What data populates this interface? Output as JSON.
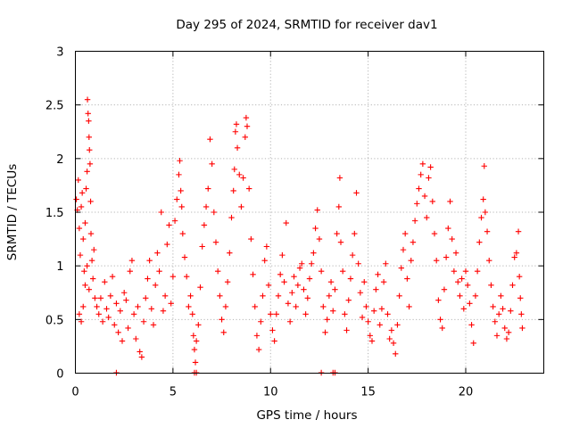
{
  "chart_data": {
    "type": "scatter",
    "title": "Day 295 of 2024, SRMTID for receiver dav1",
    "xlabel": "GPS time / hours",
    "ylabel": "SRMTID / TECUs",
    "xlim": [
      0,
      24
    ],
    "ylim": [
      0,
      3
    ],
    "xticks": [
      "0",
      "5",
      "10",
      "15",
      "20"
    ],
    "yticks": [
      "0",
      "0.5",
      "1",
      "1.5",
      "2",
      "2.5",
      "3"
    ],
    "grid": true,
    "marker": "+",
    "color": "#ff0000",
    "series": [
      {
        "name": "dav1",
        "points": [
          [
            0.05,
            1.62
          ],
          [
            0.1,
            1.52
          ],
          [
            0.15,
            1.8
          ],
          [
            0.2,
            1.35
          ],
          [
            0.25,
            1.1
          ],
          [
            0.3,
            1.55
          ],
          [
            0.35,
            1.68
          ],
          [
            0.4,
            1.25
          ],
          [
            0.45,
            0.95
          ],
          [
            0.5,
            1.4
          ],
          [
            0.55,
            1.72
          ],
          [
            0.6,
            1.88
          ],
          [
            0.62,
            2.55
          ],
          [
            0.65,
            2.42
          ],
          [
            0.68,
            2.35
          ],
          [
            0.7,
            2.2
          ],
          [
            0.72,
            2.08
          ],
          [
            0.75,
            1.95
          ],
          [
            0.78,
            1.6
          ],
          [
            0.8,
            1.3
          ],
          [
            0.85,
            1.05
          ],
          [
            0.9,
            0.88
          ],
          [
            0.95,
            1.15
          ],
          [
            1.0,
            0.7
          ],
          [
            0.2,
            0.55
          ],
          [
            0.3,
            0.48
          ],
          [
            0.4,
            0.62
          ],
          [
            0.5,
            0.82
          ],
          [
            0.6,
            1.0
          ],
          [
            0.7,
            0.78
          ],
          [
            1.1,
            0.62
          ],
          [
            1.2,
            0.55
          ],
          [
            1.3,
            0.7
          ],
          [
            1.4,
            0.48
          ],
          [
            1.5,
            0.85
          ],
          [
            1.6,
            0.6
          ],
          [
            1.7,
            0.52
          ],
          [
            1.8,
            0.72
          ],
          [
            1.9,
            0.9
          ],
          [
            2.0,
            0.45
          ],
          [
            2.1,
            0.65
          ],
          [
            2.2,
            0.38
          ],
          [
            2.3,
            0.58
          ],
          [
            2.4,
            0.3
          ],
          [
            2.5,
            0.75
          ],
          [
            2.6,
            0.68
          ],
          [
            2.7,
            0.42
          ],
          [
            2.8,
            0.95
          ],
          [
            2.9,
            1.05
          ],
          [
            3.0,
            0.55
          ],
          [
            3.1,
            0.32
          ],
          [
            3.2,
            0.62
          ],
          [
            3.3,
            0.2
          ],
          [
            3.4,
            0.15
          ],
          [
            3.5,
            0.48
          ],
          [
            3.6,
            0.7
          ],
          [
            3.7,
            0.88
          ],
          [
            3.8,
            1.05
          ],
          [
            3.9,
            0.6
          ],
          [
            4.0,
            0.45
          ],
          [
            4.1,
            0.82
          ],
          [
            4.2,
            1.12
          ],
          [
            4.3,
            0.95
          ],
          [
            4.4,
            1.5
          ],
          [
            4.5,
            0.58
          ],
          [
            4.6,
            0.72
          ],
          [
            4.7,
            1.2
          ],
          [
            4.8,
            1.38
          ],
          [
            4.9,
            0.65
          ],
          [
            5.0,
            0.9
          ],
          [
            5.1,
            1.42
          ],
          [
            5.2,
            1.62
          ],
          [
            5.3,
            1.85
          ],
          [
            5.35,
            1.98
          ],
          [
            5.4,
            1.7
          ],
          [
            5.45,
            1.55
          ],
          [
            5.5,
            1.3
          ],
          [
            5.6,
            1.08
          ],
          [
            5.7,
            0.9
          ],
          [
            5.8,
            0.62
          ],
          [
            5.9,
            0.72
          ],
          [
            6.0,
            0.55
          ],
          [
            6.05,
            0.35
          ],
          [
            6.1,
            0.22
          ],
          [
            6.15,
            0.1
          ],
          [
            6.2,
            0.3
          ],
          [
            6.3,
            0.45
          ],
          [
            6.4,
            0.8
          ],
          [
            6.5,
            1.18
          ],
          [
            6.6,
            1.38
          ],
          [
            6.7,
            1.55
          ],
          [
            6.8,
            1.72
          ],
          [
            6.9,
            2.18
          ],
          [
            7.0,
            1.95
          ],
          [
            7.1,
            1.5
          ],
          [
            7.2,
            1.22
          ],
          [
            7.3,
            0.95
          ],
          [
            7.4,
            0.72
          ],
          [
            7.5,
            0.5
          ],
          [
            7.6,
            0.38
          ],
          [
            7.7,
            0.62
          ],
          [
            7.8,
            0.85
          ],
          [
            7.9,
            1.12
          ],
          [
            8.0,
            1.45
          ],
          [
            8.1,
            1.7
          ],
          [
            8.15,
            1.9
          ],
          [
            8.2,
            2.25
          ],
          [
            8.25,
            2.32
          ],
          [
            8.3,
            2.1
          ],
          [
            8.4,
            1.85
          ],
          [
            8.5,
            1.55
          ],
          [
            8.6,
            1.82
          ],
          [
            8.7,
            2.2
          ],
          [
            8.75,
            2.38
          ],
          [
            8.8,
            2.3
          ],
          [
            8.9,
            1.72
          ],
          [
            9.0,
            1.25
          ],
          [
            9.1,
            0.92
          ],
          [
            9.2,
            0.62
          ],
          [
            9.3,
            0.35
          ],
          [
            9.4,
            0.22
          ],
          [
            9.5,
            0.48
          ],
          [
            9.6,
            0.72
          ],
          [
            9.7,
            1.05
          ],
          [
            9.8,
            1.18
          ],
          [
            9.9,
            0.82
          ],
          [
            10.0,
            0.55
          ],
          [
            10.1,
            0.4
          ],
          [
            10.2,
            0.3
          ],
          [
            10.3,
            0.55
          ],
          [
            10.4,
            0.72
          ],
          [
            10.5,
            0.92
          ],
          [
            10.6,
            1.1
          ],
          [
            10.7,
            0.85
          ],
          [
            10.8,
            1.4
          ],
          [
            10.9,
            0.65
          ],
          [
            11.0,
            0.48
          ],
          [
            11.1,
            0.75
          ],
          [
            11.2,
            0.9
          ],
          [
            11.3,
            0.62
          ],
          [
            11.4,
            0.82
          ],
          [
            11.5,
            0.98
          ],
          [
            11.6,
            1.02
          ],
          [
            11.7,
            0.78
          ],
          [
            11.8,
            0.55
          ],
          [
            11.9,
            0.7
          ],
          [
            12.0,
            0.88
          ],
          [
            12.1,
            1.02
          ],
          [
            12.2,
            1.12
          ],
          [
            12.3,
            1.35
          ],
          [
            12.4,
            1.52
          ],
          [
            12.5,
            1.25
          ],
          [
            12.6,
            0.95
          ],
          [
            12.7,
            0.62
          ],
          [
            12.8,
            0.38
          ],
          [
            12.9,
            0.5
          ],
          [
            13.0,
            0.72
          ],
          [
            13.1,
            0.85
          ],
          [
            13.2,
            0.58
          ],
          [
            13.3,
            0.78
          ],
          [
            13.4,
            1.3
          ],
          [
            13.5,
            1.55
          ],
          [
            13.55,
            1.82
          ],
          [
            13.6,
            1.22
          ],
          [
            13.7,
            0.95
          ],
          [
            13.8,
            0.55
          ],
          [
            13.9,
            0.4
          ],
          [
            14.0,
            0.68
          ],
          [
            14.1,
            0.88
          ],
          [
            14.2,
            1.1
          ],
          [
            14.3,
            1.3
          ],
          [
            14.4,
            1.68
          ],
          [
            14.5,
            1.02
          ],
          [
            14.6,
            0.75
          ],
          [
            14.7,
            0.52
          ],
          [
            14.8,
            0.85
          ],
          [
            14.9,
            0.62
          ],
          [
            15.0,
            0.48
          ],
          [
            15.1,
            0.35
          ],
          [
            15.2,
            0.3
          ],
          [
            15.3,
            0.58
          ],
          [
            15.4,
            0.78
          ],
          [
            15.5,
            0.92
          ],
          [
            15.6,
            0.45
          ],
          [
            15.7,
            0.6
          ],
          [
            15.8,
            0.85
          ],
          [
            15.9,
            1.02
          ],
          [
            16.0,
            0.55
          ],
          [
            16.1,
            0.32
          ],
          [
            16.2,
            0.4
          ],
          [
            16.3,
            0.28
          ],
          [
            16.4,
            0.18
          ],
          [
            16.5,
            0.45
          ],
          [
            16.6,
            0.72
          ],
          [
            16.7,
            0.98
          ],
          [
            16.8,
            1.15
          ],
          [
            16.9,
            1.3
          ],
          [
            17.0,
            0.88
          ],
          [
            17.1,
            0.62
          ],
          [
            17.2,
            1.05
          ],
          [
            17.3,
            1.22
          ],
          [
            17.4,
            1.42
          ],
          [
            17.5,
            1.58
          ],
          [
            17.6,
            1.72
          ],
          [
            17.7,
            1.85
          ],
          [
            17.8,
            1.95
          ],
          [
            17.9,
            1.65
          ],
          [
            18.0,
            1.45
          ],
          [
            18.1,
            1.82
          ],
          [
            18.2,
            1.92
          ],
          [
            18.3,
            1.6
          ],
          [
            18.4,
            1.3
          ],
          [
            18.5,
            1.05
          ],
          [
            18.6,
            0.68
          ],
          [
            18.7,
            0.5
          ],
          [
            18.8,
            0.42
          ],
          [
            18.9,
            0.78
          ],
          [
            19.0,
            1.08
          ],
          [
            19.1,
            1.35
          ],
          [
            19.2,
            1.6
          ],
          [
            19.3,
            1.25
          ],
          [
            19.4,
            0.95
          ],
          [
            19.5,
            1.12
          ],
          [
            19.6,
            0.85
          ],
          [
            19.7,
            0.72
          ],
          [
            19.8,
            0.88
          ],
          [
            19.9,
            0.6
          ],
          [
            20.0,
            0.95
          ],
          [
            20.1,
            0.82
          ],
          [
            20.2,
            0.65
          ],
          [
            20.3,
            0.45
          ],
          [
            20.4,
            0.28
          ],
          [
            20.5,
            0.72
          ],
          [
            20.6,
            0.95
          ],
          [
            20.7,
            1.22
          ],
          [
            20.8,
            1.45
          ],
          [
            20.9,
            1.62
          ],
          [
            20.95,
            1.93
          ],
          [
            21.0,
            1.5
          ],
          [
            21.1,
            1.32
          ],
          [
            21.2,
            1.05
          ],
          [
            21.3,
            0.82
          ],
          [
            21.4,
            0.62
          ],
          [
            21.5,
            0.48
          ],
          [
            21.6,
            0.35
          ],
          [
            21.7,
            0.55
          ],
          [
            21.8,
            0.72
          ],
          [
            21.9,
            0.6
          ],
          [
            22.0,
            0.42
          ],
          [
            22.1,
            0.32
          ],
          [
            22.2,
            0.38
          ],
          [
            22.3,
            0.58
          ],
          [
            22.4,
            0.82
          ],
          [
            22.5,
            1.08
          ],
          [
            22.6,
            1.12
          ],
          [
            22.7,
            1.32
          ],
          [
            22.75,
            0.9
          ],
          [
            22.8,
            0.7
          ],
          [
            22.85,
            0.55
          ],
          [
            22.9,
            0.42
          ],
          [
            2.1,
            0.0
          ],
          [
            6.1,
            0.0
          ],
          [
            6.2,
            0.0
          ],
          [
            12.6,
            0.0
          ],
          [
            13.2,
            0.0
          ],
          [
            13.3,
            0.0
          ]
        ]
      }
    ]
  }
}
